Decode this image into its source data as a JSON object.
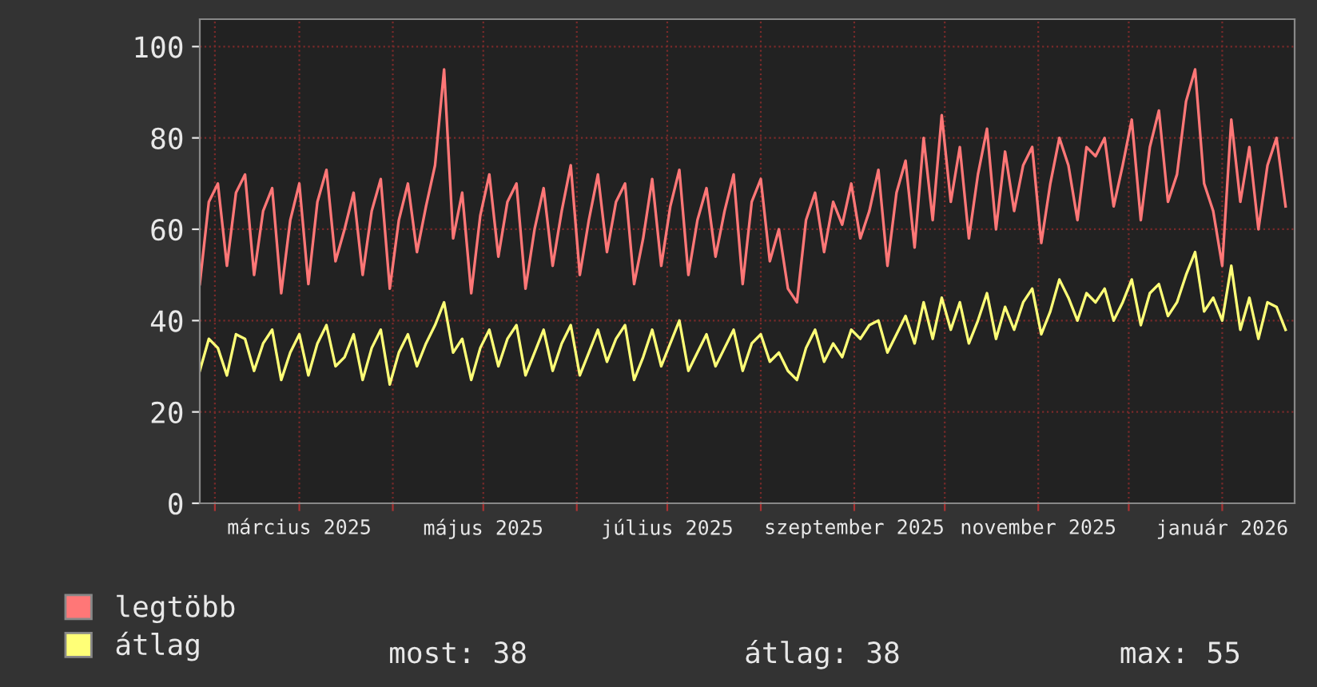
{
  "chart_data": {
    "type": "line",
    "x": [
      "2025-01-27",
      "2025-01-30",
      "2025-02-02",
      "2025-02-05",
      "2025-02-08",
      "2025-02-11",
      "2025-02-14",
      "2025-02-17",
      "2025-02-20",
      "2025-02-23",
      "2025-02-26",
      "2025-03-01",
      "2025-03-04",
      "2025-03-07",
      "2025-03-10",
      "2025-03-13",
      "2025-03-16",
      "2025-03-19",
      "2025-03-22",
      "2025-03-25",
      "2025-03-28",
      "2025-03-31",
      "2025-04-03",
      "2025-04-06",
      "2025-04-09",
      "2025-04-12",
      "2025-04-15",
      "2025-04-18",
      "2025-04-21",
      "2025-04-24",
      "2025-04-27",
      "2025-04-30",
      "2025-05-03",
      "2025-05-06",
      "2025-05-09",
      "2025-05-12",
      "2025-05-15",
      "2025-05-18",
      "2025-05-21",
      "2025-05-24",
      "2025-05-27",
      "2025-05-30",
      "2025-06-02",
      "2025-06-05",
      "2025-06-08",
      "2025-06-11",
      "2025-06-14",
      "2025-06-17",
      "2025-06-20",
      "2025-06-23",
      "2025-06-26",
      "2025-06-29",
      "2025-07-02",
      "2025-07-05",
      "2025-07-08",
      "2025-07-11",
      "2025-07-14",
      "2025-07-17",
      "2025-07-20",
      "2025-07-23",
      "2025-07-26",
      "2025-07-29",
      "2025-08-01",
      "2025-08-04",
      "2025-08-07",
      "2025-08-10",
      "2025-08-13",
      "2025-08-16",
      "2025-08-19",
      "2025-08-22",
      "2025-08-25",
      "2025-08-28",
      "2025-08-31",
      "2025-09-03",
      "2025-09-06",
      "2025-09-09",
      "2025-09-12",
      "2025-09-15",
      "2025-09-18",
      "2025-09-21",
      "2025-09-24",
      "2025-09-27",
      "2025-09-30",
      "2025-10-03",
      "2025-10-06",
      "2025-10-09",
      "2025-10-12",
      "2025-10-15",
      "2025-10-18",
      "2025-10-21",
      "2025-10-24",
      "2025-10-27",
      "2025-10-30",
      "2025-11-02",
      "2025-11-05",
      "2025-11-08",
      "2025-11-11",
      "2025-11-14",
      "2025-11-17",
      "2025-11-20",
      "2025-11-23",
      "2025-11-26",
      "2025-11-29",
      "2025-12-02",
      "2025-12-05",
      "2025-12-08",
      "2025-12-11",
      "2025-12-14",
      "2025-12-17",
      "2025-12-20",
      "2025-12-23",
      "2025-12-26",
      "2025-12-29",
      "2026-01-01",
      "2026-01-04",
      "2026-01-07",
      "2026-01-10",
      "2026-01-13",
      "2026-01-16",
      "2026-01-19",
      "2026-01-22"
    ],
    "series": [
      {
        "name": "legtöbb",
        "color": "#ff7777",
        "values": [
          48,
          66,
          70,
          52,
          68,
          72,
          50,
          64,
          69,
          46,
          62,
          70,
          48,
          66,
          73,
          53,
          60,
          68,
          50,
          64,
          71,
          47,
          62,
          70,
          55,
          65,
          74,
          95,
          58,
          68,
          46,
          63,
          72,
          54,
          66,
          70,
          47,
          60,
          69,
          52,
          64,
          74,
          50,
          62,
          72,
          55,
          66,
          70,
          48,
          58,
          71,
          52,
          65,
          73,
          50,
          62,
          69,
          54,
          64,
          72,
          48,
          66,
          71,
          53,
          60,
          47,
          44,
          62,
          68,
          55,
          66,
          61,
          70,
          58,
          64,
          73,
          52,
          68,
          75,
          56,
          80,
          62,
          85,
          66,
          78,
          58,
          72,
          82,
          60,
          77,
          64,
          74,
          78,
          57,
          70,
          80,
          74,
          62,
          78,
          76,
          80,
          65,
          74,
          84,
          62,
          78,
          86,
          66,
          72,
          88,
          95,
          70,
          64,
          52,
          84,
          66,
          78,
          60,
          74,
          80,
          65
        ]
      },
      {
        "name": "átlag",
        "color": "#ffff77",
        "values": [
          29,
          36,
          34,
          28,
          37,
          36,
          29,
          35,
          38,
          27,
          33,
          37,
          28,
          35,
          39,
          30,
          32,
          37,
          27,
          34,
          38,
          26,
          33,
          37,
          30,
          35,
          39,
          44,
          33,
          36,
          27,
          34,
          38,
          30,
          36,
          39,
          28,
          33,
          38,
          29,
          35,
          39,
          28,
          33,
          38,
          31,
          36,
          39,
          27,
          32,
          38,
          30,
          35,
          40,
          29,
          33,
          37,
          30,
          34,
          38,
          29,
          35,
          37,
          31,
          33,
          29,
          27,
          34,
          38,
          31,
          35,
          32,
          38,
          36,
          39,
          40,
          33,
          37,
          41,
          35,
          44,
          36,
          45,
          38,
          44,
          35,
          40,
          46,
          36,
          43,
          38,
          44,
          47,
          37,
          42,
          49,
          45,
          40,
          46,
          44,
          47,
          40,
          44,
          49,
          39,
          46,
          48,
          41,
          44,
          50,
          55,
          42,
          45,
          40,
          52,
          38,
          45,
          36,
          44,
          43,
          38
        ]
      }
    ],
    "xlim": [
      "2025-01-27",
      "2026-01-25"
    ],
    "xticks": [
      {
        "value": "2025-02-01",
        "label": null
      },
      {
        "value": "2025-03-01",
        "label": "március 2025"
      },
      {
        "value": "2025-04-01",
        "label": null
      },
      {
        "value": "2025-05-01",
        "label": "május 2025"
      },
      {
        "value": "2025-06-01",
        "label": null
      },
      {
        "value": "2025-07-01",
        "label": "július 2025"
      },
      {
        "value": "2025-08-01",
        "label": null
      },
      {
        "value": "2025-09-01",
        "label": "szeptember 2025"
      },
      {
        "value": "2025-10-01",
        "label": null
      },
      {
        "value": "2025-11-01",
        "label": "november 2025"
      },
      {
        "value": "2025-12-01",
        "label": null
      },
      {
        "value": "2026-01-01",
        "label": "január 2026"
      }
    ],
    "ylim": [
      0,
      106
    ],
    "yticks": [
      0,
      20,
      40,
      60,
      80,
      100
    ],
    "grid": true,
    "legend": "bottom left",
    "marker": "none",
    "line_style": "solid",
    "annotations": [
      "most: 38",
      "átlag: 38",
      "max: 55"
    ]
  }
}
